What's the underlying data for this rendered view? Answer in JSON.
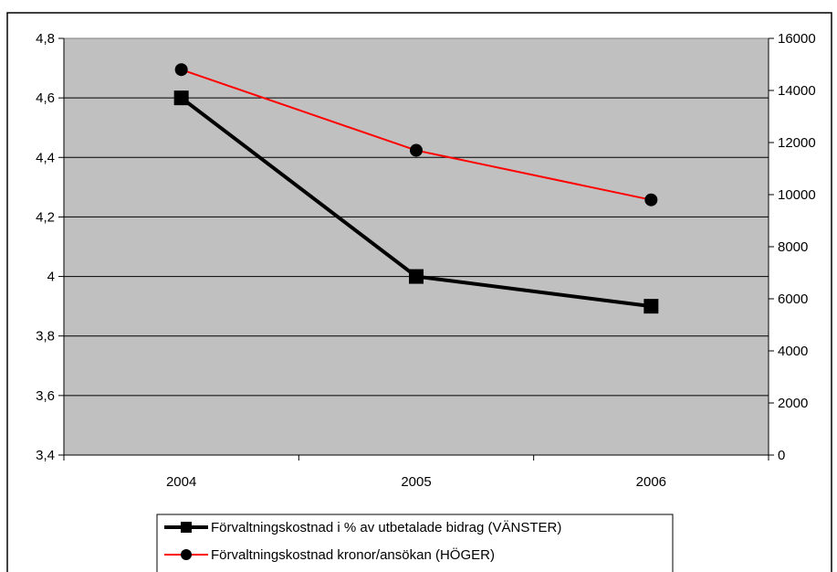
{
  "chart_data": {
    "type": "line",
    "categories": [
      "2004",
      "2005",
      "2006"
    ],
    "series": [
      {
        "name": "Förvaltningskostnad i % av utbetalade bidrag (VÄNSTER)",
        "axis": "left",
        "color": "#000000",
        "marker": "square",
        "values": [
          4.6,
          4.0,
          3.9
        ]
      },
      {
        "name": "Förvaltningskostnad kronor/ansökan (HÖGER)",
        "axis": "right",
        "color": "#ff0000",
        "marker": "circle",
        "values": [
          14800,
          11700,
          9800
        ]
      }
    ],
    "y_left": {
      "ylim": [
        3.4,
        4.8
      ],
      "ticks": [
        "3,4",
        "3,6",
        "3,8",
        "4",
        "4,2",
        "4,4",
        "4,6",
        "4,8"
      ]
    },
    "y_right": {
      "ylim": [
        0,
        16000
      ],
      "ticks": [
        "0",
        "2000",
        "4000",
        "6000",
        "8000",
        "10000",
        "12000",
        "14000",
        "16000"
      ]
    },
    "plot_background": "#c0c0c0",
    "grid": true,
    "legend_position": "bottom"
  }
}
